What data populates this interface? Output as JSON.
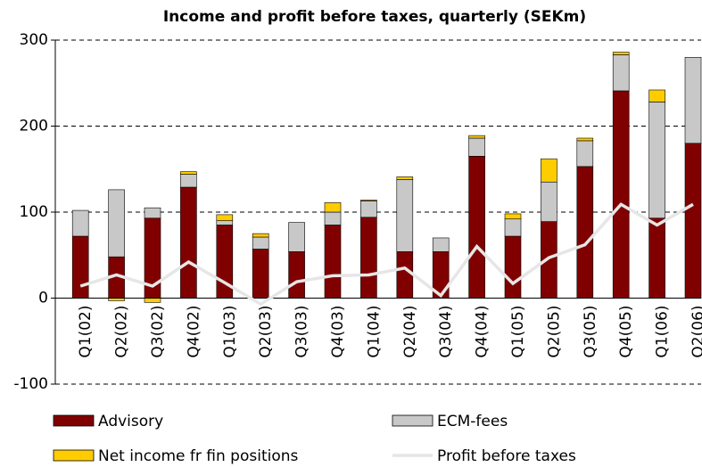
{
  "chart_data": {
    "type": "bar",
    "stacked": true,
    "title": "Income and profit before taxes, quarterly (SEKm)",
    "categories": [
      "Q1(02)",
      "Q2(02)",
      "Q3(02)",
      "Q4(02)",
      "Q1(03)",
      "Q2(03)",
      "Q3(03)",
      "Q4(03)",
      "Q1(04)",
      "Q2(04)",
      "Q3(04)",
      "Q4(04)",
      "Q1(05)",
      "Q2(05)",
      "Q3(05)",
      "Q4(05)",
      "Q1(06)",
      "Q2(06)"
    ],
    "series": [
      {
        "name": "Advisory",
        "type": "bar",
        "color": "#800000",
        "values": [
          72,
          48,
          93,
          129,
          85,
          57,
          54,
          85,
          94,
          54,
          54,
          165,
          72,
          89,
          153,
          241,
          93,
          180
        ]
      },
      {
        "name": "ECM-fees",
        "type": "bar",
        "color": "#c8c8c8",
        "values": [
          30,
          78,
          12,
          15,
          5,
          14,
          34,
          15,
          19,
          84,
          16,
          21,
          20,
          46,
          30,
          42,
          135,
          100
        ]
      },
      {
        "name": "Net income fr fin positions",
        "type": "bar",
        "color": "#ffcc00",
        "values": [
          0,
          -3,
          -5,
          3,
          7,
          4,
          0,
          11,
          1,
          3,
          0,
          3,
          6,
          27,
          3,
          3,
          14,
          0
        ]
      },
      {
        "name": "Profit before taxes",
        "type": "line",
        "color": "#e6e6e6",
        "values": [
          14,
          27,
          14,
          42,
          18,
          -7,
          19,
          26,
          27,
          35,
          3,
          60,
          17,
          47,
          62,
          109,
          85,
          109
        ]
      }
    ],
    "ylim": [
      -100,
      300
    ],
    "yticks": [
      -100,
      0,
      100,
      200,
      300
    ],
    "grid": true
  }
}
